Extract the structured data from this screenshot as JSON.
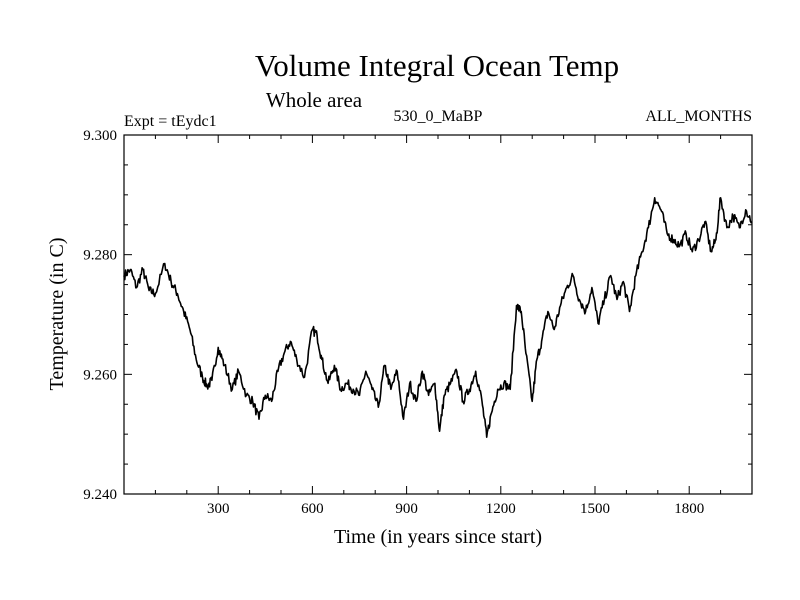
{
  "chart_data": {
    "type": "line",
    "title": "Volume Integral Ocean Temp",
    "subtitle": "Whole area",
    "expt_label": "Expt = tEydc1",
    "run_label": "530_0_MaBP",
    "months_label": "ALL_MONTHS",
    "xlabel": "Time (in years since start)",
    "ylabel": "Temperature (in C)",
    "xlim": [
      0,
      2000
    ],
    "ylim": [
      9.24,
      9.3
    ],
    "xticks": [
      300,
      600,
      900,
      1200,
      1500,
      1800
    ],
    "xtick_labels": [
      "300",
      "600",
      "900",
      "1200",
      "1500",
      "1800"
    ],
    "yticks": [
      9.24,
      9.26,
      9.28,
      9.3
    ],
    "ytick_labels": [
      "9.240",
      "9.260",
      "9.280",
      "9.300"
    ],
    "grid": false,
    "series": [
      {
        "name": "Volume Integral Ocean Temp",
        "color": "#000000",
        "x": [
          0,
          20,
          40,
          60,
          80,
          100,
          130,
          150,
          170,
          190,
          210,
          230,
          250,
          265,
          280,
          300,
          320,
          345,
          365,
          390,
          410,
          430,
          450,
          470,
          490,
          510,
          530,
          550,
          575,
          600,
          615,
          630,
          650,
          670,
          690,
          710,
          730,
          750,
          770,
          790,
          810,
          830,
          850,
          870,
          890,
          910,
          930,
          950,
          970,
          990,
          1005,
          1020,
          1040,
          1060,
          1080,
          1100,
          1120,
          1140,
          1155,
          1170,
          1190,
          1210,
          1230,
          1250,
          1265,
          1280,
          1300,
          1315,
          1330,
          1350,
          1370,
          1390,
          1410,
          1430,
          1450,
          1470,
          1490,
          1510,
          1530,
          1550,
          1570,
          1590,
          1610,
          1630,
          1650,
          1670,
          1690,
          1710,
          1730,
          1750,
          1770,
          1790,
          1810,
          1830,
          1850,
          1870,
          1885,
          1900,
          1920,
          1940,
          1960,
          1980,
          2000
        ],
        "values": [
          9.2765,
          9.2775,
          9.2745,
          9.2775,
          9.274,
          9.2735,
          9.2785,
          9.2755,
          9.2735,
          9.2705,
          9.2675,
          9.2625,
          9.2595,
          9.258,
          9.259,
          9.2645,
          9.2615,
          9.2575,
          9.2605,
          9.2565,
          9.2555,
          9.2525,
          9.2565,
          9.2555,
          9.2605,
          9.2635,
          9.2655,
          9.2625,
          9.2595,
          9.2675,
          9.2665,
          9.2625,
          9.2585,
          9.2615,
          9.2575,
          9.2585,
          9.2575,
          9.2565,
          9.2605,
          9.2575,
          9.2545,
          9.2615,
          9.2575,
          9.2605,
          9.2525,
          9.2585,
          9.2555,
          9.2605,
          9.2565,
          9.2585,
          9.2505,
          9.2565,
          9.2585,
          9.2605,
          9.2555,
          9.2575,
          9.2605,
          9.2555,
          9.2495,
          9.2535,
          9.2575,
          9.2585,
          9.2575,
          9.2715,
          9.2705,
          9.2635,
          9.2555,
          9.2625,
          9.2655,
          9.2705,
          9.2675,
          9.2715,
          9.2745,
          9.2765,
          9.2725,
          9.2705,
          9.2745,
          9.2685,
          9.2725,
          9.2765,
          9.2725,
          9.2755,
          9.2705,
          9.2765,
          9.2805,
          9.2845,
          9.2895,
          9.2875,
          9.2835,
          9.2825,
          9.2815,
          9.2835,
          9.2805,
          9.2825,
          9.2855,
          9.2805,
          9.2825,
          9.2895,
          9.2845,
          9.2865,
          9.2845,
          9.2875,
          9.2855
        ]
      }
    ]
  }
}
